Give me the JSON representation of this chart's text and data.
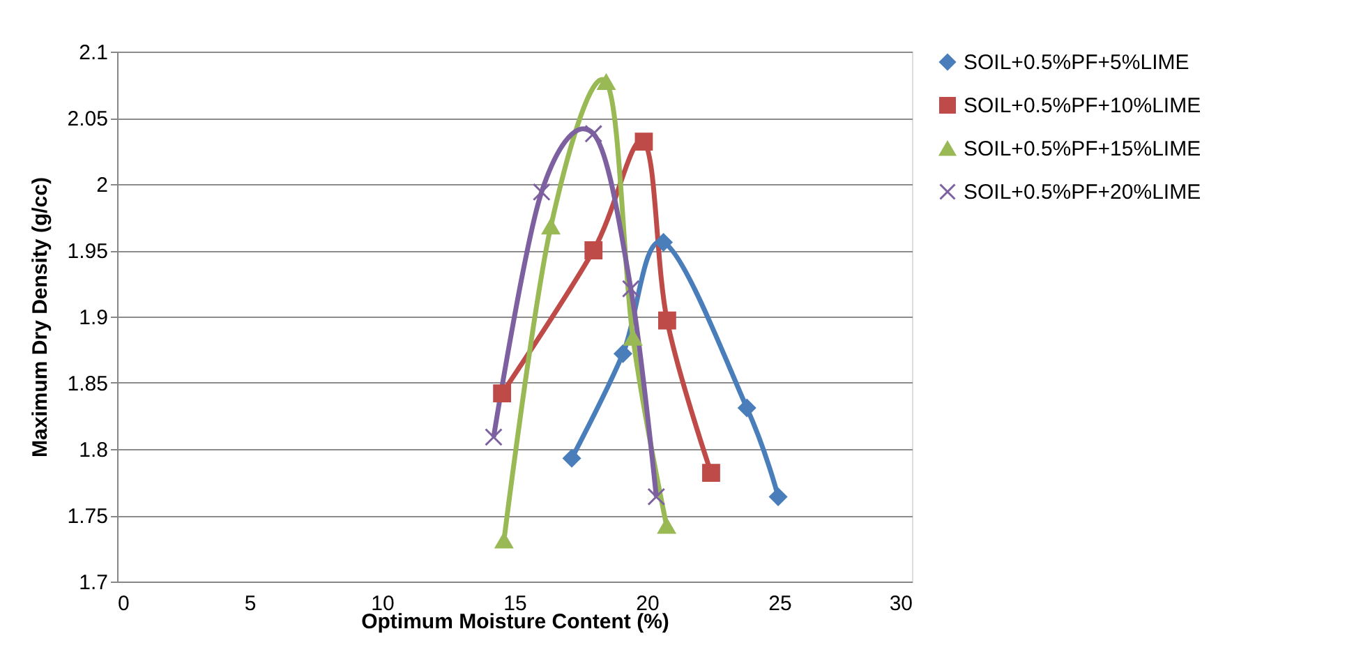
{
  "chart_data": {
    "type": "line",
    "xlabel": "Optimum Moisture  Content (%)",
    "ylabel": "Maximum Dry Density (g/cc)",
    "xlim": [
      0,
      30
    ],
    "xticks": [
      0,
      5,
      10,
      15,
      20,
      25,
      30
    ],
    "ylim": [
      1.7,
      2.1
    ],
    "yticks": [
      1.7,
      1.75,
      1.8,
      1.85,
      1.9,
      1.95,
      2,
      2.05,
      2.1
    ],
    "grid": "y",
    "legend": "right",
    "line_style": "solid",
    "series": [
      {
        "name": "SOIL+0.5%PF+5%LIME",
        "color": "#4a7ebb",
        "marker": "diamond",
        "x": [
          17.16,
          19.09,
          20.62,
          23.77,
          24.95
        ],
        "values": [
          1.793,
          1.872,
          1.956,
          1.831,
          1.764
        ]
      },
      {
        "name": "SOIL+0.5%PF+10%LIME",
        "color": "#be4b48",
        "marker": "square",
        "x": [
          14.53,
          17.98,
          19.88,
          20.76,
          22.42
        ],
        "values": [
          1.842,
          1.95,
          2.032,
          1.897,
          1.782
        ]
      },
      {
        "name": "SOIL+0.5%PF+15%LIME",
        "color": "#98b954",
        "marker": "triangle",
        "x": [
          14.6,
          16.37,
          18.46,
          19.47,
          20.74
        ],
        "values": [
          1.731,
          1.968,
          2.077,
          1.884,
          1.742
        ]
      },
      {
        "name": "SOIL+0.5%PF+20%LIME",
        "color": "#7d60a0",
        "marker": "cross",
        "x": [
          14.21,
          16.02,
          17.98,
          19.39,
          20.35
        ],
        "values": [
          1.809,
          1.994,
          2.038,
          1.921,
          1.764
        ]
      }
    ]
  }
}
